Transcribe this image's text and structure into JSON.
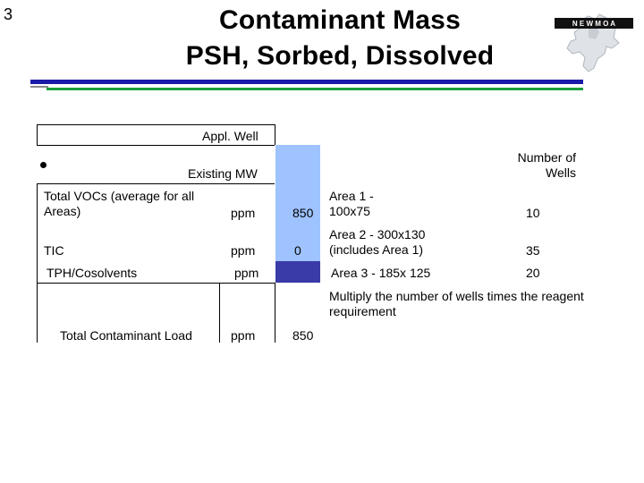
{
  "slide_number": "3",
  "title": {
    "line1": "Contaminant Mass",
    "line2": "PSH, Sorbed, Dissolved"
  },
  "logo": {
    "text": "N E W M O A",
    "icon": "newmoa-logo-icon"
  },
  "table": {
    "header_appl_well": "Appl. Well",
    "header_existing_mw": "Existing MW",
    "header_number_of_wells": "Number of Wells",
    "rows": [
      {
        "label": "Total VOCs (average for all Areas)",
        "unit": "ppm",
        "value": "850",
        "area": "Area 1 - 100x75",
        "wells": "10"
      },
      {
        "label": "TIC",
        "unit": "ppm",
        "value": "0",
        "area": "Area 2 - 300x130 (includes Area 1)",
        "wells": "35"
      },
      {
        "label": "TPH/Cosolvents",
        "unit": "ppm",
        "value": "",
        "area": "Area 3 - 185x 125",
        "wells": "20"
      }
    ],
    "note": "Multiply the number of wells times the reagent requirement",
    "total": {
      "label": "Total Contaminant Load",
      "unit": "ppm",
      "value": "850"
    }
  },
  "colors": {
    "light_blue_fill": "#9ec3ff",
    "dark_blue_fill": "#3a3aa8",
    "rule_blue": "#1a1aa8",
    "rule_green": "#1c9e3a"
  }
}
